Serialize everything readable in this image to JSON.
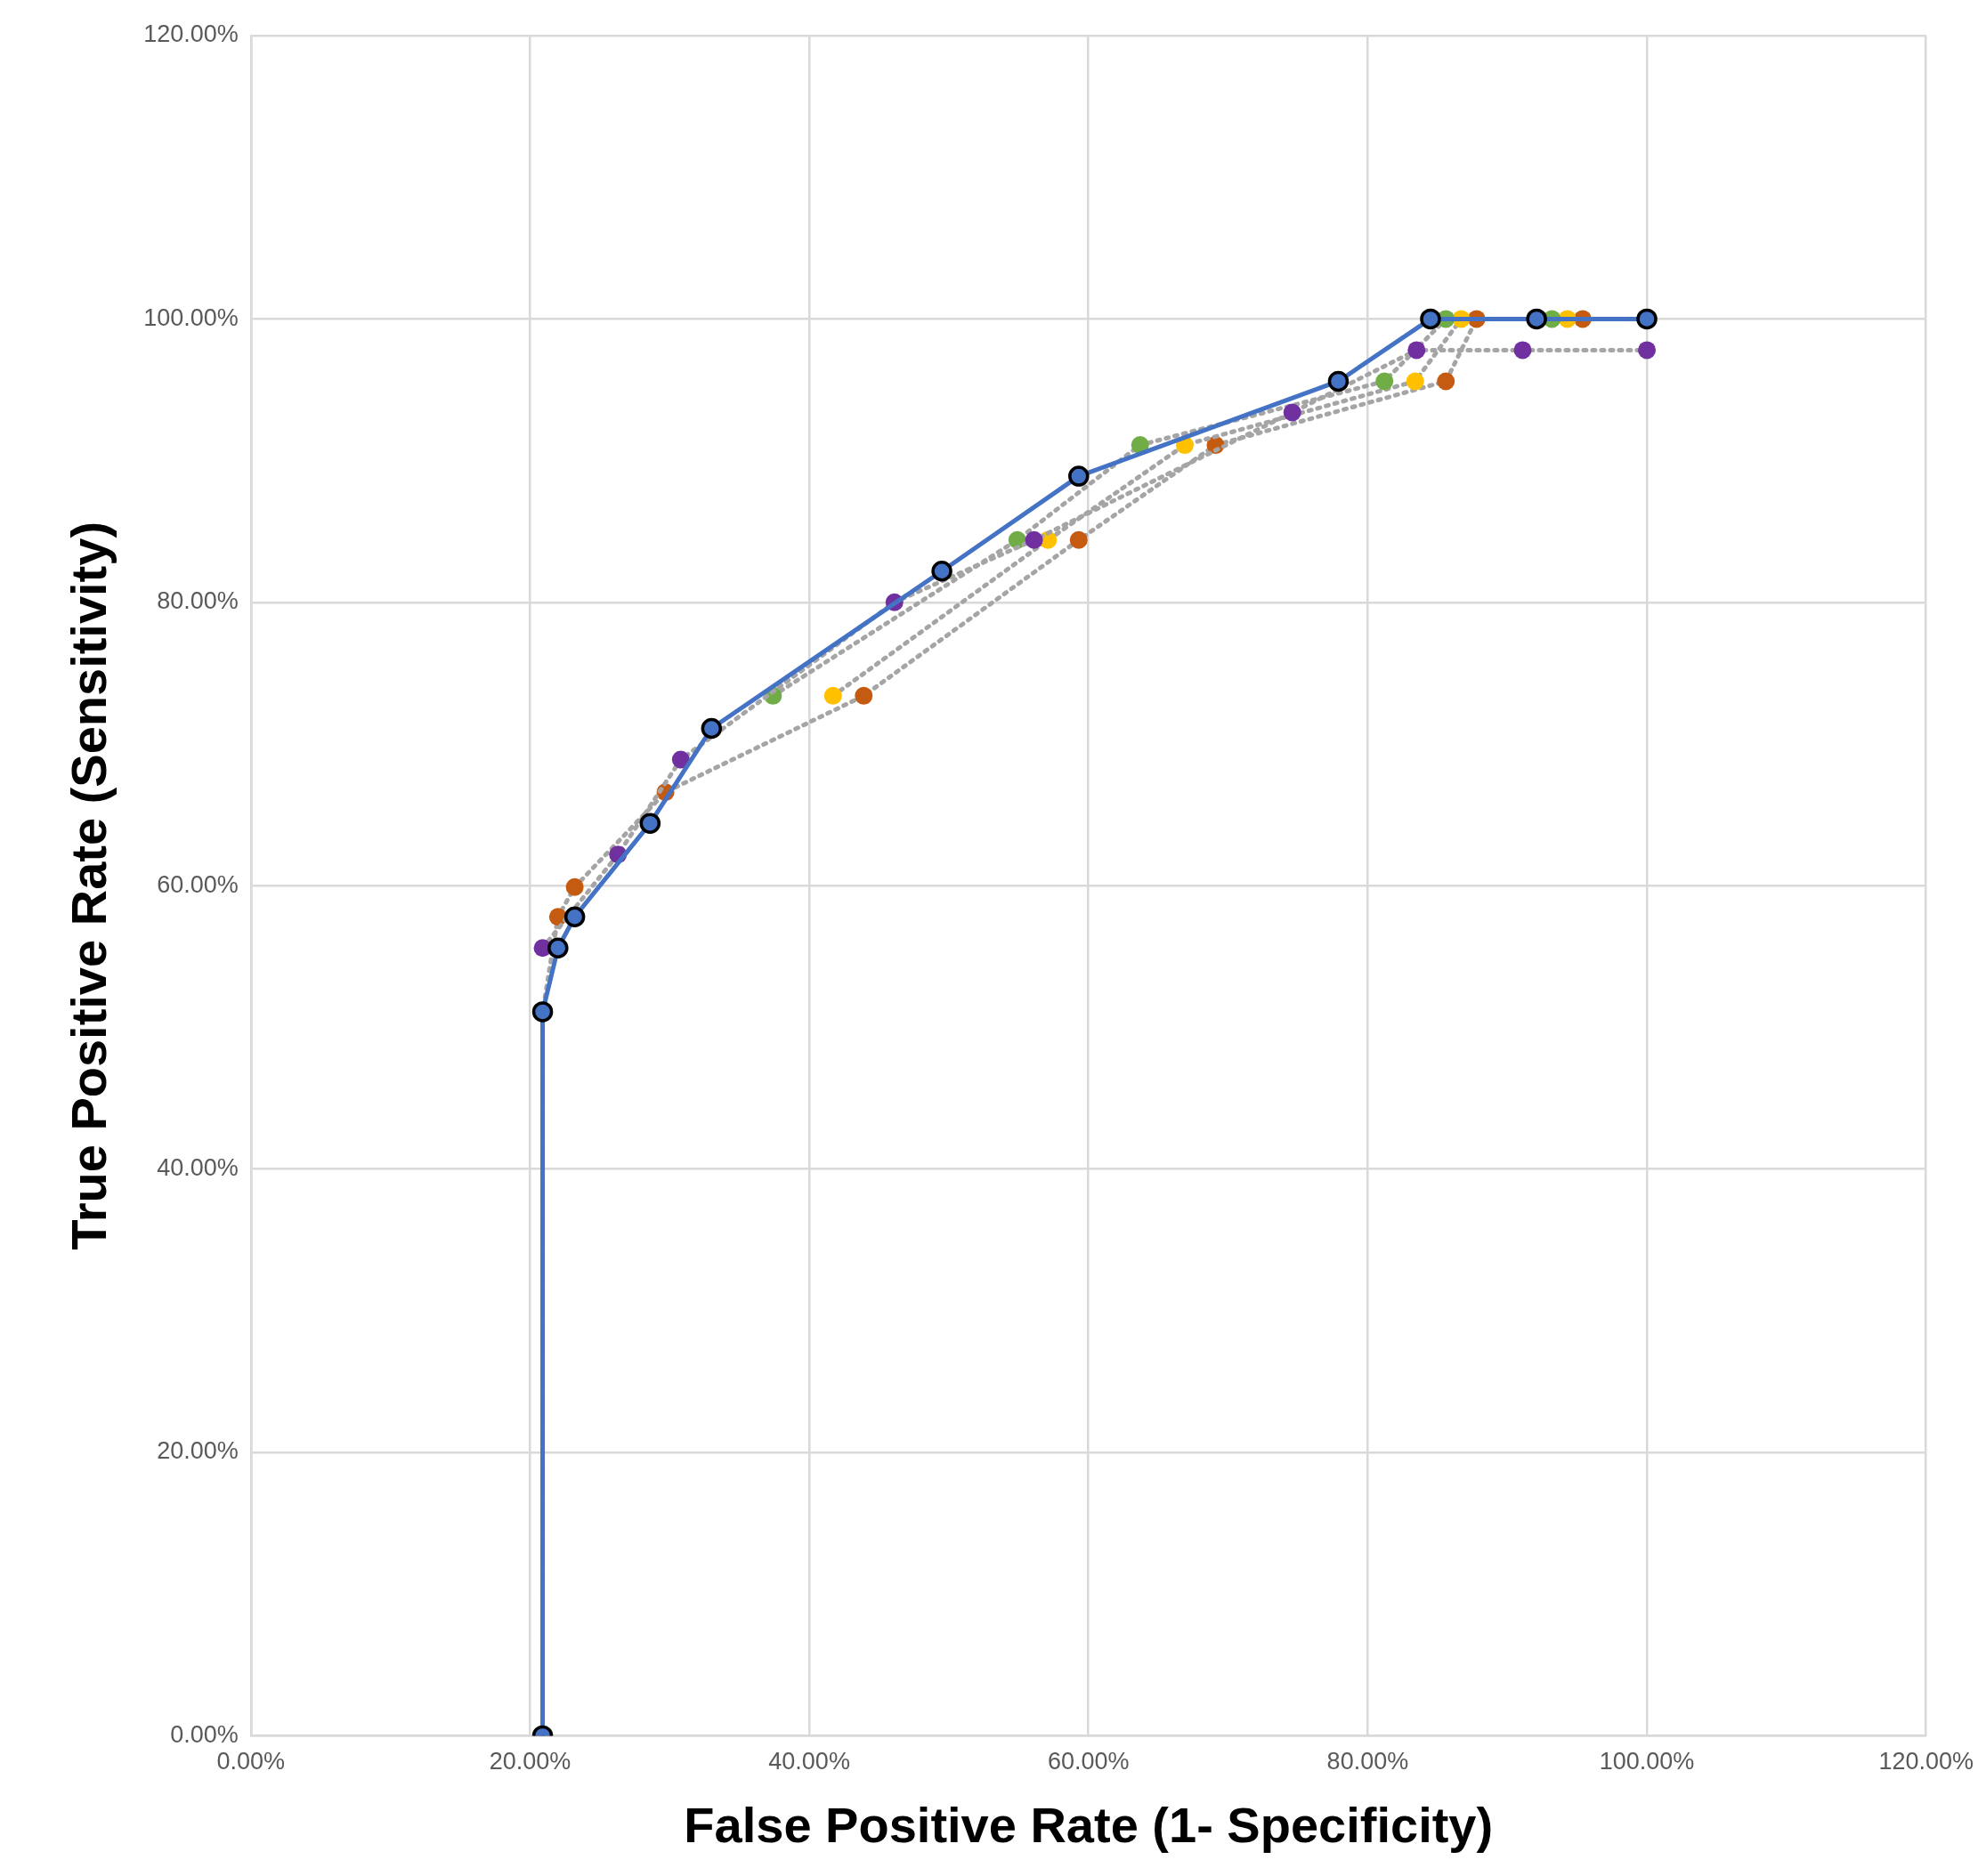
{
  "chart_data": {
    "type": "line",
    "xlabel": "False Positive Rate (1- Specificity)",
    "ylabel": "True Positive Rate (Sensitivity)",
    "xlim": [
      0,
      120
    ],
    "ylim": [
      0,
      120
    ],
    "xticks": [
      {
        "value": 0,
        "label": "0.00%"
      },
      {
        "value": 20,
        "label": "20.00%"
      },
      {
        "value": 40,
        "label": "40.00%"
      },
      {
        "value": 60,
        "label": "60.00%"
      },
      {
        "value": 80,
        "label": "80.00%"
      },
      {
        "value": 100,
        "label": "100.00%"
      },
      {
        "value": 120,
        "label": "120.00%"
      }
    ],
    "yticks": [
      {
        "value": 0,
        "label": "0.00%"
      },
      {
        "value": 20,
        "label": "20.00%"
      },
      {
        "value": 40,
        "label": "40.00%"
      },
      {
        "value": 60,
        "label": "60.00%"
      },
      {
        "value": 80,
        "label": "80.00%"
      },
      {
        "value": 100,
        "label": "100.00%"
      },
      {
        "value": 120,
        "label": "120.00%"
      }
    ],
    "grid": true,
    "marker": "circle",
    "series": [
      {
        "line_style": "solid",
        "color": "#4472c4",
        "x": [
          20.9,
          20.9,
          22.0,
          23.2,
          28.6,
          33.0,
          49.5,
          59.3,
          77.9,
          84.5,
          92.1,
          100
        ],
        "values": [
          0,
          51.1,
          55.6,
          57.8,
          64.4,
          71.1,
          82.2,
          88.9,
          95.6,
          100,
          100,
          100
        ]
      },
      {
        "line_style": "dotted",
        "color": "#a5a5a5",
        "colors": [
          "#7030a0",
          "#7030a0",
          "#7030a0",
          "#7030a0",
          "#7030a0",
          "#7030a0",
          "#7030a0",
          "#7030a0",
          "#7030a0"
        ],
        "x": [
          20.9,
          26.3,
          30.8,
          46.1,
          56.1,
          74.6,
          83.5,
          91.1,
          100
        ],
        "values": [
          55.6,
          62.2,
          68.9,
          80.0,
          84.4,
          93.4,
          97.8,
          97.8,
          97.8
        ]
      },
      {
        "line_style": "dotted",
        "color": "#a5a5a5",
        "colors": [
          "#70ad47",
          "#70ad47",
          "#70ad47",
          "#70ad47",
          "#70ad47",
          "#70ad47"
        ],
        "x": [
          37.4,
          54.9,
          63.7,
          81.2,
          85.6,
          93.2
        ],
        "values": [
          73.4,
          84.4,
          91.1,
          95.6,
          100,
          100
        ]
      },
      {
        "line_style": "dotted",
        "color": "#a5a5a5",
        "colors": [
          "#ffc000",
          "#ffc000",
          "#ffc000",
          "#ffc000",
          "#ffc000",
          "#ffc000"
        ],
        "x": [
          41.7,
          57.1,
          66.9,
          83.4,
          86.7,
          94.3
        ],
        "values": [
          73.4,
          84.4,
          91.1,
          95.6,
          100,
          100
        ]
      },
      {
        "line_style": "dotted",
        "color": "#a5a5a5",
        "colors": [
          "#c55a11",
          "#c55a11",
          "#c55a11",
          "#c55a11",
          "#c55a11",
          "#c55a11",
          "#c55a11",
          "#c55a11",
          "#c55a11",
          "#c55a11",
          "#c55a11",
          "#c55a11"
        ],
        "x": [
          20.9,
          20.9,
          22.0,
          23.2,
          29.7,
          43.9,
          59.3,
          69.1,
          85.6,
          87.8,
          95.4,
          100
        ],
        "values": [
          0,
          51.1,
          57.8,
          59.9,
          66.6,
          73.4,
          84.4,
          91.1,
          95.6,
          100,
          100,
          100
        ]
      }
    ]
  }
}
